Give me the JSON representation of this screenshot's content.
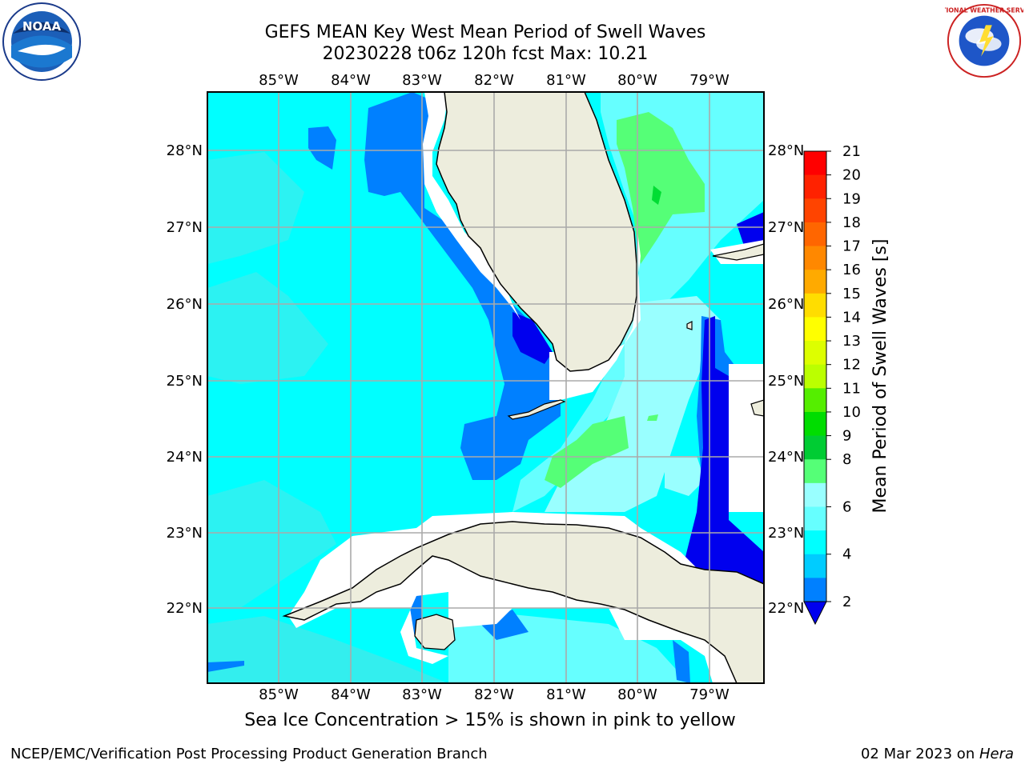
{
  "header": {
    "title_line1": "GEFS MEAN Key West Mean Period of Swell Waves",
    "title_line2": "20230228 t06z 120h fcst   Max: 10.21"
  },
  "map": {
    "lon_labels": [
      "85°W",
      "84°W",
      "83°W",
      "82°W",
      "81°W",
      "80°W",
      "79°W"
    ],
    "lat_labels_left": [
      "28°N",
      "27°N",
      "26°N",
      "25°N",
      "24°N",
      "23°N",
      "22°N"
    ],
    "lat_labels_right": [
      "28°N",
      "27°N",
      "26°N",
      "25°N",
      "24°N",
      "23°N",
      "22°N"
    ],
    "colors": {
      "ocean_base": "#00FFFF",
      "ocean_light": "#33EEEE",
      "deep_blue": "#0080FF",
      "dark_blue": "#0000EE",
      "pale_cyan": "#99FFFF",
      "green": "#55FF77",
      "land": "#EDEDDD",
      "grid": "#AAAAAA"
    }
  },
  "colorbar": {
    "label": "Mean Period of Swell Waves [s]",
    "ticks": [
      "21",
      "20",
      "19",
      "18",
      "17",
      "16",
      "15",
      "14",
      "13",
      "12",
      "11",
      "10",
      "9",
      "8",
      "6",
      "4",
      "2"
    ],
    "colors": [
      "#FF0000",
      "#FF2200",
      "#FF4400",
      "#FF6600",
      "#FF8800",
      "#FFAA00",
      "#FFDD00",
      "#FFFF00",
      "#DDFF00",
      "#BBFF00",
      "#55EE00",
      "#00DD00",
      "#00CC33",
      "#55FF77",
      "#99FFFF",
      "#66FFFF",
      "#00FFFF",
      "#00CCFF",
      "#0080FF",
      "#0000EE"
    ]
  },
  "footer": {
    "note": "Sea Ice Concentration > 15% is shown in pink to yellow",
    "credit_left": "NCEP/EMC/Verification Post Processing Product Generation Branch",
    "credit_right_date": "02 Mar 2023 on ",
    "credit_right_host": "Hera"
  },
  "logos": {
    "noaa_text": "NOAA",
    "nws_text": "NATIONAL WEATHER SERVICE"
  }
}
